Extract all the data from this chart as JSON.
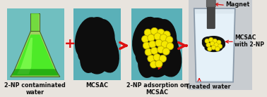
{
  "bg_color": "#e8e4de",
  "panel_bg": "#7ec8c8",
  "panel_bg2": "#8ecece",
  "labels": {
    "flask": "2-NP contaminated\nwater",
    "mcsac": "MCSAC",
    "adsorption": "2-NP adsorption on\nMCSAC",
    "treated": "Treated water",
    "magnet": "Magnet",
    "mcsac_2np": "MCSAC\nwith 2-NP"
  },
  "arrow_color": "#dd1111",
  "plus_color": "#dd1111",
  "dot_color": "#f5e800",
  "dot_outline": "#b8a800",
  "text_color": "#111111",
  "label_fontsize": 5.8,
  "annotation_fontsize": 5.5
}
